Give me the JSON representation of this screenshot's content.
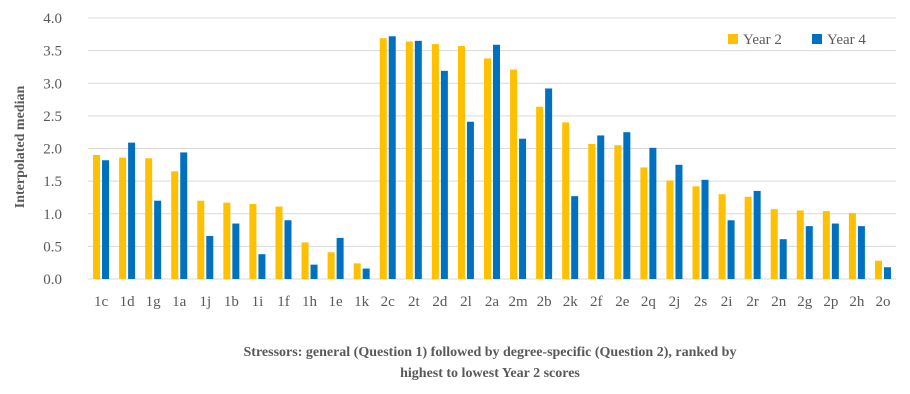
{
  "chart_data": {
    "type": "bar",
    "ylabel": "Interpolated median",
    "xlabel_lines": [
      "Stressors: general (Question 1) followed by degree-specific (Question 2), ranked by",
      "highest to lowest Year 2 scores"
    ],
    "ylim": [
      0,
      4
    ],
    "yticks": [
      "0.0",
      "0.5",
      "1.0",
      "1.5",
      "2.0",
      "2.5",
      "3.0",
      "3.5",
      "4.0"
    ],
    "grid": true,
    "legend_position": "top-right",
    "categories": [
      "1c",
      "1d",
      "1g",
      "1a",
      "1j",
      "1b",
      "1i",
      "1f",
      "1h",
      "1e",
      "1k",
      "2c",
      "2t",
      "2d",
      "2l",
      "2a",
      "2m",
      "2b",
      "2k",
      "2f",
      "2e",
      "2q",
      "2j",
      "2s",
      "2i",
      "2r",
      "2n",
      "2g",
      "2p",
      "2h",
      "2o"
    ],
    "series": [
      {
        "name": "Year 2",
        "color": "#FFC000",
        "values": [
          1.9,
          1.86,
          1.85,
          1.65,
          1.2,
          1.17,
          1.15,
          1.11,
          0.56,
          0.41,
          0.24,
          3.69,
          3.64,
          3.6,
          3.57,
          3.38,
          3.21,
          2.64,
          2.4,
          2.07,
          2.05,
          1.71,
          1.51,
          1.42,
          1.3,
          1.26,
          1.07,
          1.05,
          1.04,
          1.01,
          0.28
        ]
      },
      {
        "name": "Year 4",
        "color": "#0070C0",
        "values": [
          1.82,
          2.09,
          1.2,
          1.94,
          0.66,
          0.85,
          0.38,
          0.9,
          0.22,
          0.63,
          0.16,
          3.72,
          3.65,
          3.19,
          2.41,
          3.59,
          2.15,
          2.92,
          1.27,
          2.2,
          2.25,
          2.01,
          1.75,
          1.52,
          0.9,
          1.35,
          0.61,
          0.81,
          0.85,
          0.81,
          0.18
        ]
      }
    ]
  }
}
